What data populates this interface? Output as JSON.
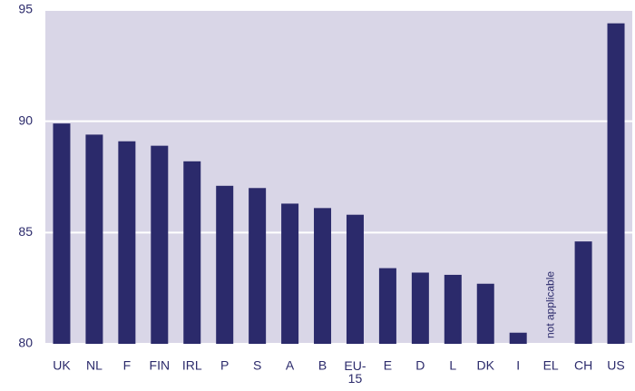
{
  "chart_data": {
    "type": "bar",
    "categories": [
      "UK",
      "NL",
      "F",
      "FIN",
      "IRL",
      "P",
      "S",
      "A",
      "B",
      "EU-\n15",
      "E",
      "D",
      "L",
      "DK",
      "I",
      "EL",
      "CH",
      "US"
    ],
    "values": [
      89.9,
      89.4,
      89.1,
      88.9,
      88.2,
      87.1,
      87.0,
      86.3,
      86.1,
      85.8,
      83.4,
      83.2,
      83.1,
      82.7,
      80.5,
      null,
      84.6,
      94.4
    ],
    "annotation": "not applicable",
    "color": "#2b2a6b",
    "ylim": [
      80,
      95
    ],
    "yticks": [
      80,
      85,
      90,
      95
    ],
    "grid": true
  }
}
